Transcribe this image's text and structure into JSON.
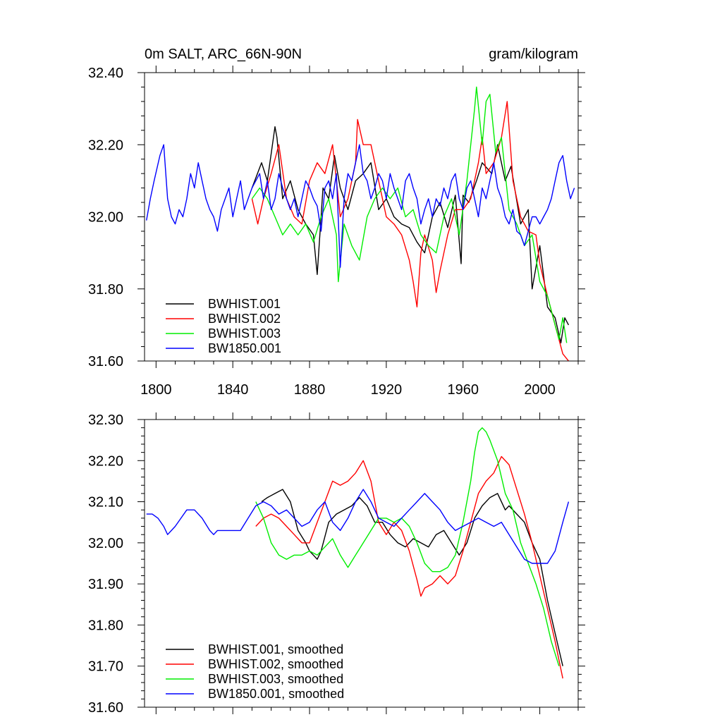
{
  "chart_data": [
    {
      "type": "line",
      "title": "0m SALT, ARC_66N-90N",
      "units": "gram/kilogram",
      "xlabel": "",
      "ylabel": "",
      "xlim": [
        1794,
        2020
      ],
      "ylim": [
        31.6,
        32.4
      ],
      "xticks": [
        1800,
        1840,
        1880,
        1920,
        1960,
        2000
      ],
      "xtick_labels": [
        "1800",
        "1840",
        "1880",
        "1920",
        "1960",
        "2000"
      ],
      "yticks": [
        31.6,
        31.8,
        32.0,
        32.2,
        32.4
      ],
      "ytick_labels": [
        "31.60",
        "31.80",
        "32.00",
        "32.20",
        "32.40"
      ],
      "legend_position": "bottom-left",
      "series": [
        {
          "name": "BWHIST.001",
          "color": "#000000",
          "x": [
            1850,
            1855,
            1858,
            1862,
            1863,
            1866,
            1870,
            1874,
            1878,
            1882,
            1884,
            1887,
            1890,
            1893,
            1896,
            1900,
            1904,
            1908,
            1912,
            1916,
            1920,
            1924,
            1928,
            1932,
            1936,
            1940,
            1944,
            1948,
            1952,
            1956,
            1959,
            1960,
            1963,
            1967,
            1970,
            1975,
            1978,
            1982,
            1985,
            1990,
            1994,
            1996,
            2000,
            2004,
            2008,
            2011,
            2013,
            2015
          ],
          "y": [
            32.08,
            32.15,
            32.1,
            32.25,
            32.22,
            32.05,
            32.1,
            32.02,
            31.98,
            31.95,
            31.84,
            32.08,
            32.05,
            32.17,
            32.08,
            32.02,
            32.1,
            32.12,
            32.15,
            32.02,
            32.05,
            32.0,
            31.98,
            31.97,
            31.93,
            31.9,
            32.0,
            32.04,
            31.97,
            32.06,
            31.87,
            32.06,
            32.04,
            32.1,
            32.15,
            32.12,
            32.2,
            32.1,
            32.14,
            31.98,
            32.02,
            31.8,
            31.92,
            31.75,
            31.72,
            31.65,
            31.72,
            31.7
          ]
        },
        {
          "name": "BWHIST.002",
          "color": "#ff0000",
          "x": [
            1850,
            1853,
            1856,
            1860,
            1864,
            1868,
            1872,
            1876,
            1880,
            1884,
            1888,
            1892,
            1896,
            1900,
            1904,
            1905,
            1908,
            1912,
            1916,
            1920,
            1924,
            1928,
            1932,
            1934,
            1936,
            1938,
            1940,
            1944,
            1946,
            1948,
            1952,
            1956,
            1960,
            1964,
            1968,
            1970,
            1972,
            1976,
            1980,
            1983,
            1986,
            1990,
            1994,
            1998,
            2000,
            2004,
            2008,
            2012,
            2015
          ],
          "y": [
            32.05,
            31.98,
            32.05,
            32.12,
            32.2,
            32.05,
            32.0,
            31.98,
            32.1,
            32.15,
            32.12,
            32.2,
            32.0,
            32.05,
            32.15,
            32.27,
            32.2,
            32.2,
            32.1,
            32.0,
            31.98,
            31.95,
            31.88,
            31.82,
            31.75,
            31.9,
            31.95,
            31.88,
            31.79,
            31.85,
            31.95,
            32.02,
            32.02,
            32.05,
            32.15,
            32.22,
            32.12,
            32.15,
            32.22,
            32.32,
            32.1,
            32.0,
            31.96,
            31.95,
            31.87,
            31.78,
            31.7,
            31.62,
            31.6
          ]
        },
        {
          "name": "BWHIST.003",
          "color": "#00ee00",
          "x": [
            1850,
            1854,
            1858,
            1862,
            1866,
            1870,
            1874,
            1878,
            1882,
            1886,
            1890,
            1894,
            1895,
            1898,
            1902,
            1906,
            1910,
            1914,
            1918,
            1922,
            1926,
            1930,
            1934,
            1938,
            1942,
            1946,
            1950,
            1954,
            1958,
            1962,
            1966,
            1967,
            1970,
            1972,
            1974,
            1977,
            1980,
            1984,
            1988,
            1992,
            1996,
            2000,
            2004,
            2008,
            2010,
            2012,
            2014
          ],
          "y": [
            32.05,
            32.08,
            32.05,
            32.0,
            31.95,
            31.98,
            31.95,
            31.98,
            31.93,
            32.0,
            32.05,
            31.95,
            31.82,
            31.98,
            31.92,
            31.88,
            32.0,
            32.05,
            32.08,
            32.05,
            32.08,
            32.0,
            32.02,
            31.95,
            31.92,
            31.9,
            32.0,
            32.05,
            31.95,
            32.1,
            32.3,
            32.36,
            32.2,
            32.32,
            32.34,
            32.18,
            32.22,
            32.02,
            31.98,
            31.92,
            31.95,
            31.82,
            31.78,
            31.7,
            31.66,
            31.72,
            31.65
          ]
        },
        {
          "name": "BW1850.001",
          "color": "#0000ff",
          "x": [
            1795,
            1797,
            1799,
            1802,
            1804,
            1806,
            1808,
            1810,
            1812,
            1814,
            1816,
            1818,
            1820,
            1822,
            1824,
            1826,
            1828,
            1830,
            1832,
            1834,
            1836,
            1838,
            1840,
            1842,
            1844,
            1846,
            1848,
            1850,
            1852,
            1854,
            1856,
            1858,
            1860,
            1862,
            1864,
            1866,
            1868,
            1870,
            1872,
            1874,
            1876,
            1878,
            1880,
            1882,
            1884,
            1886,
            1888,
            1890,
            1892,
            1894,
            1896,
            1898,
            1900,
            1902,
            1904,
            1906,
            1908,
            1910,
            1912,
            1914,
            1916,
            1918,
            1920,
            1922,
            1924,
            1926,
            1928,
            1930,
            1932,
            1934,
            1936,
            1938,
            1940,
            1942,
            1944,
            1946,
            1948,
            1950,
            1952,
            1954,
            1956,
            1958,
            1960,
            1962,
            1964,
            1966,
            1968,
            1970,
            1972,
            1974,
            1976,
            1978,
            1980,
            1982,
            1984,
            1986,
            1988,
            1990,
            1992,
            1994,
            1996,
            1998,
            2000,
            2002,
            2004,
            2006,
            2008,
            2010,
            2012,
            2014,
            2016,
            2018
          ],
          "y": [
            31.99,
            32.05,
            32.1,
            32.17,
            32.2,
            32.05,
            32.0,
            31.98,
            32.02,
            32.0,
            32.05,
            32.12,
            32.08,
            32.15,
            32.1,
            32.05,
            32.02,
            32.0,
            31.96,
            32.02,
            32.05,
            32.08,
            32.0,
            32.05,
            32.1,
            32.02,
            32.05,
            32.08,
            32.1,
            32.12,
            32.05,
            32.1,
            32.02,
            32.05,
            32.12,
            32.08,
            32.05,
            32.02,
            32.05,
            32.0,
            32.05,
            32.1,
            32.08,
            32.05,
            32.03,
            31.96,
            32.08,
            32.1,
            32.05,
            32.12,
            31.86,
            32.05,
            32.12,
            32.1,
            32.15,
            32.2,
            32.12,
            32.1,
            32.05,
            32.08,
            32.12,
            32.1,
            32.05,
            32.12,
            32.08,
            32.05,
            32.02,
            32.1,
            32.12,
            32.08,
            32.05,
            31.98,
            32.02,
            32.05,
            32.0,
            32.05,
            32.03,
            32.08,
            32.05,
            32.1,
            32.12,
            32.05,
            32.02,
            32.08,
            32.1,
            32.05,
            32.0,
            32.08,
            32.05,
            32.1,
            32.15,
            32.08,
            32.05,
            32.0,
            31.98,
            32.02,
            31.96,
            31.95,
            31.92,
            31.96,
            32.0,
            32.0,
            31.98,
            32.0,
            32.02,
            32.05,
            32.1,
            32.15,
            32.17,
            32.1,
            32.05,
            32.08
          ]
        }
      ]
    },
    {
      "type": "line",
      "title": "",
      "xlabel": "",
      "ylabel": "",
      "xlim": [
        1794,
        2020
      ],
      "ylim": [
        31.6,
        32.3
      ],
      "xticks": [
        1800,
        1840,
        1880,
        1920,
        1960,
        2000
      ],
      "yticks": [
        31.6,
        31.7,
        31.8,
        31.9,
        32.0,
        32.1,
        32.2,
        32.3
      ],
      "ytick_labels": [
        "31.60",
        "31.70",
        "31.80",
        "31.90",
        "32.00",
        "32.10",
        "32.20",
        "32.30"
      ],
      "legend_position": "bottom-left",
      "series": [
        {
          "name": "BWHIST.001, smoothed",
          "color": "#000000",
          "x": [
            1855,
            1858,
            1862,
            1866,
            1870,
            1874,
            1878,
            1880,
            1882,
            1884,
            1886,
            1890,
            1894,
            1898,
            1902,
            1906,
            1910,
            1914,
            1918,
            1922,
            1926,
            1930,
            1934,
            1938,
            1942,
            1946,
            1950,
            1954,
            1958,
            1962,
            1966,
            1970,
            1974,
            1978,
            1982,
            1984,
            1988,
            1992,
            1996,
            2000,
            2004,
            2008,
            2012
          ],
          "y": [
            32.1,
            32.11,
            32.12,
            32.13,
            32.1,
            32.03,
            32.0,
            31.98,
            31.97,
            31.96,
            31.98,
            32.05,
            32.07,
            32.08,
            32.09,
            32.11,
            32.09,
            32.05,
            32.05,
            32.02,
            32.0,
            31.99,
            32.01,
            32.0,
            31.99,
            32.02,
            32.03,
            32.0,
            31.97,
            32.0,
            32.06,
            32.09,
            32.11,
            32.12,
            32.08,
            32.09,
            32.07,
            32.05,
            32.0,
            31.96,
            31.86,
            31.78,
            31.7
          ]
        },
        {
          "name": "BWHIST.002, smoothed",
          "color": "#ff0000",
          "x": [
            1852,
            1856,
            1860,
            1864,
            1868,
            1872,
            1876,
            1880,
            1884,
            1888,
            1892,
            1896,
            1900,
            1904,
            1908,
            1912,
            1916,
            1920,
            1924,
            1928,
            1932,
            1936,
            1938,
            1940,
            1944,
            1948,
            1952,
            1956,
            1960,
            1964,
            1968,
            1972,
            1976,
            1980,
            1984,
            1988,
            1992,
            1996,
            2000,
            2004,
            2008,
            2012
          ],
          "y": [
            32.04,
            32.06,
            32.07,
            32.06,
            32.04,
            32.02,
            32.0,
            32.0,
            32.05,
            32.1,
            32.15,
            32.14,
            32.15,
            32.17,
            32.2,
            32.15,
            32.05,
            32.02,
            32.05,
            32.03,
            31.98,
            31.91,
            31.87,
            31.89,
            31.9,
            31.92,
            31.9,
            31.92,
            31.98,
            32.05,
            32.12,
            32.15,
            32.17,
            32.21,
            32.19,
            32.13,
            32.07,
            32.0,
            31.92,
            31.84,
            31.76,
            31.67
          ]
        },
        {
          "name": "BWHIST.003, smoothed",
          "color": "#00ee00",
          "x": [
            1852,
            1856,
            1860,
            1864,
            1868,
            1872,
            1876,
            1880,
            1884,
            1888,
            1892,
            1896,
            1900,
            1904,
            1908,
            1912,
            1916,
            1920,
            1924,
            1928,
            1932,
            1936,
            1940,
            1944,
            1948,
            1952,
            1956,
            1960,
            1964,
            1966,
            1968,
            1970,
            1972,
            1974,
            1978,
            1982,
            1986,
            1990,
            1994,
            1998,
            2002,
            2006,
            2010
          ],
          "y": [
            32.1,
            32.06,
            32.0,
            31.97,
            31.96,
            31.97,
            31.97,
            31.98,
            31.97,
            31.99,
            32.01,
            31.97,
            31.94,
            31.97,
            32.0,
            32.03,
            32.06,
            32.06,
            32.05,
            32.06,
            32.04,
            32.0,
            31.95,
            31.93,
            31.93,
            31.94,
            31.97,
            32.05,
            32.15,
            32.22,
            32.27,
            32.28,
            32.27,
            32.25,
            32.2,
            32.12,
            32.08,
            32.0,
            31.95,
            31.9,
            31.84,
            31.76,
            31.7
          ]
        },
        {
          "name": "BW1850.001, smoothed",
          "color": "#0000ff",
          "x": [
            1795,
            1798,
            1801,
            1804,
            1806,
            1808,
            1810,
            1813,
            1816,
            1820,
            1824,
            1828,
            1830,
            1832,
            1834,
            1836,
            1840,
            1844,
            1848,
            1852,
            1856,
            1860,
            1864,
            1868,
            1872,
            1876,
            1880,
            1884,
            1888,
            1892,
            1896,
            1900,
            1904,
            1908,
            1912,
            1916,
            1920,
            1924,
            1928,
            1932,
            1936,
            1940,
            1944,
            1948,
            1952,
            1956,
            1960,
            1964,
            1968,
            1972,
            1976,
            1980,
            1984,
            1988,
            1992,
            1996,
            2000,
            2004,
            2008,
            2012,
            2015
          ],
          "y": [
            32.07,
            32.07,
            32.06,
            32.04,
            32.02,
            32.03,
            32.04,
            32.06,
            32.08,
            32.08,
            32.06,
            32.03,
            32.02,
            32.03,
            32.03,
            32.03,
            32.03,
            32.03,
            32.06,
            32.09,
            32.1,
            32.09,
            32.07,
            32.08,
            32.06,
            32.04,
            32.05,
            32.08,
            32.1,
            32.05,
            32.03,
            32.06,
            32.1,
            32.13,
            32.1,
            32.06,
            32.05,
            32.04,
            32.06,
            32.08,
            32.1,
            32.12,
            32.1,
            32.08,
            32.05,
            32.03,
            32.04,
            32.05,
            32.06,
            32.05,
            32.04,
            32.05,
            32.02,
            31.99,
            31.96,
            31.95,
            31.95,
            31.95,
            31.98,
            32.05,
            32.1
          ]
        }
      ]
    }
  ]
}
